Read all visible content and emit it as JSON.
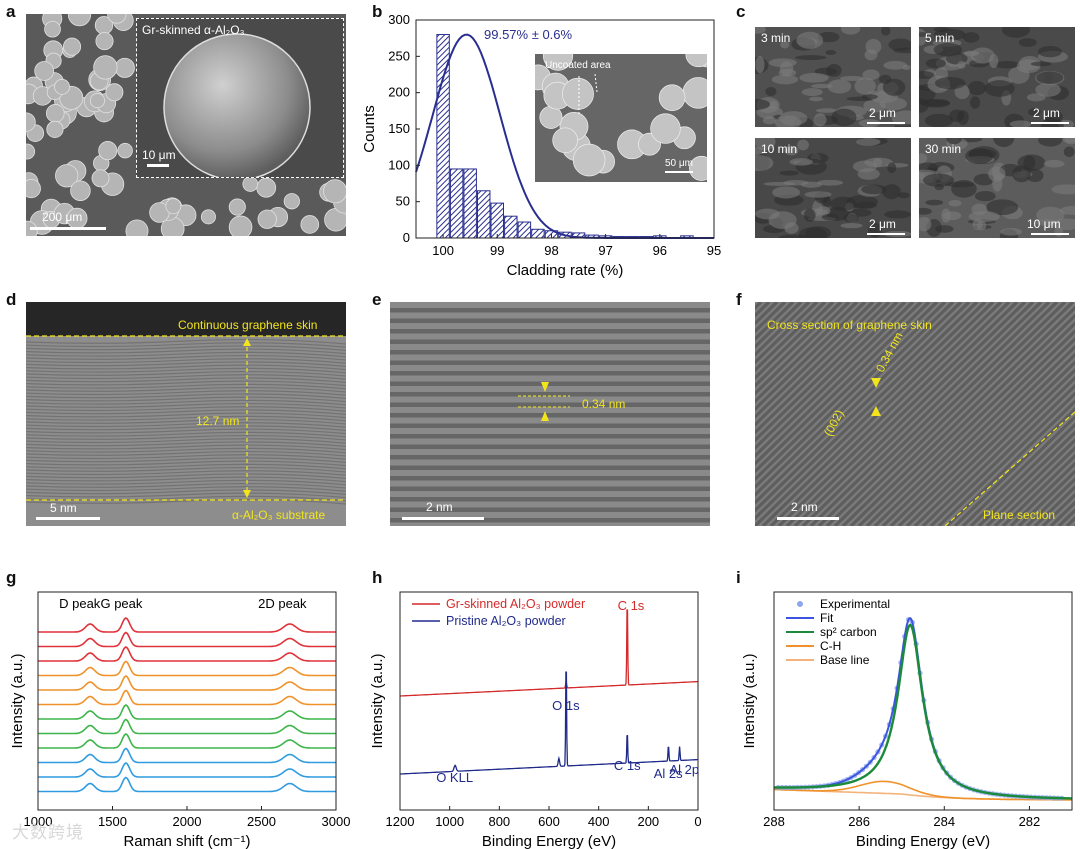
{
  "panels": {
    "a": {
      "label": "a",
      "inset_label": "Gr-skinned α-Al₂O₃",
      "inset_scale": "10 μm",
      "scale": "200 μm"
    },
    "b": {
      "label": "b",
      "annotation": "99.57% ± 0.6%",
      "inset_label": "Uncoated area",
      "inset_scale": "50 μm"
    },
    "c": {
      "label": "c",
      "tiles": [
        {
          "time": "3 min",
          "scale": "2 μm"
        },
        {
          "time": "5 min",
          "scale": "2 μm"
        },
        {
          "time": "10 min",
          "scale": "2 μm"
        },
        {
          "time": "30 min",
          "scale": "10 μm"
        }
      ]
    },
    "d": {
      "label": "d",
      "top_text": "Continuous graphene skin",
      "thickness": "12.7 nm",
      "bottom_text": "α-Al₂O₃ substrate",
      "scale": "5 nm"
    },
    "e": {
      "label": "e",
      "spacing": "0.34 nm",
      "scale": "2 nm"
    },
    "f": {
      "label": "f",
      "title": "Cross section of graphene skin",
      "spacing": "0.34 nm",
      "plane": "(002)",
      "plane_section": "Plane section",
      "scale": "2 nm"
    },
    "g": {
      "label": "g"
    },
    "h": {
      "label": "h"
    },
    "i": {
      "label": "i"
    }
  },
  "chart_data": [
    {
      "id": "b",
      "type": "bar",
      "xlabel": "Cladding rate (%)",
      "ylabel": "Counts",
      "xlim": [
        100.5,
        95
      ],
      "ylim": [
        0,
        300
      ],
      "xticks": [
        100,
        99,
        98,
        97,
        96,
        95
      ],
      "yticks": [
        0,
        50,
        100,
        150,
        200,
        250,
        300
      ],
      "x": [
        100.0,
        99.75,
        99.5,
        99.25,
        99.0,
        98.75,
        98.5,
        98.25,
        98.0,
        97.75,
        97.5,
        97.25,
        97.0,
        96.75,
        96.5,
        96.25,
        96.0,
        95.75,
        95.5
      ],
      "values": [
        280,
        95,
        95,
        65,
        48,
        30,
        22,
        12,
        10,
        8,
        7,
        4,
        3,
        2,
        2,
        2,
        3,
        0,
        3
      ],
      "fit": {
        "peak_x": 99.57,
        "peak_y": 280,
        "sigma": 0.62
      }
    },
    {
      "id": "g",
      "type": "line",
      "xlabel": "Raman shift (cm⁻¹)",
      "ylabel": "Intensity (a.u.)",
      "xlim": [
        1000,
        3000
      ],
      "xticks": [
        1000,
        1500,
        2000,
        2500,
        3000
      ],
      "annotations": [
        "D peak",
        "G peak",
        "2D peak"
      ],
      "series_colors": [
        "#e0323a",
        "#e0323a",
        "#e0323a",
        "#f0922b",
        "#f0922b",
        "#f0922b",
        "#3db54a",
        "#3db54a",
        "#3db54a",
        "#2f9be0",
        "#2f9be0",
        "#2f9be0"
      ]
    },
    {
      "id": "h",
      "type": "line",
      "xlabel": "Binding Energy (eV)",
      "ylabel": "Intensity (a.u.)",
      "xlim": [
        1200,
        0
      ],
      "xticks": [
        1200,
        1000,
        800,
        600,
        400,
        200,
        0
      ],
      "series": [
        {
          "name": "Gr-skinned Al₂O₃ powder",
          "color": "#d42a2a"
        },
        {
          "name": "Pristine Al₂O₃ powder",
          "color": "#1f2a8a"
        }
      ],
      "annotations": [
        "C 1s",
        "O 1s",
        "C 1s",
        "O KLL",
        "Al 2s",
        "Al 2p"
      ]
    },
    {
      "id": "i",
      "type": "line",
      "xlabel": "Binding Energy (eV)",
      "ylabel": "Intensity (a.u.)",
      "xlim": [
        288,
        281
      ],
      "xticks": [
        288,
        286,
        284,
        282
      ],
      "series": [
        {
          "name": "Experimental",
          "color": "#8fa6ef"
        },
        {
          "name": "Fit",
          "color": "#3b55e0"
        },
        {
          "name": "sp² carbon",
          "color": "#1b8a3a"
        },
        {
          "name": "C-H",
          "color": "#f0922b"
        },
        {
          "name": "Base line",
          "color": "#f3b37a"
        }
      ],
      "peak_x": 284.8
    }
  ],
  "watermark": "大数跨境"
}
